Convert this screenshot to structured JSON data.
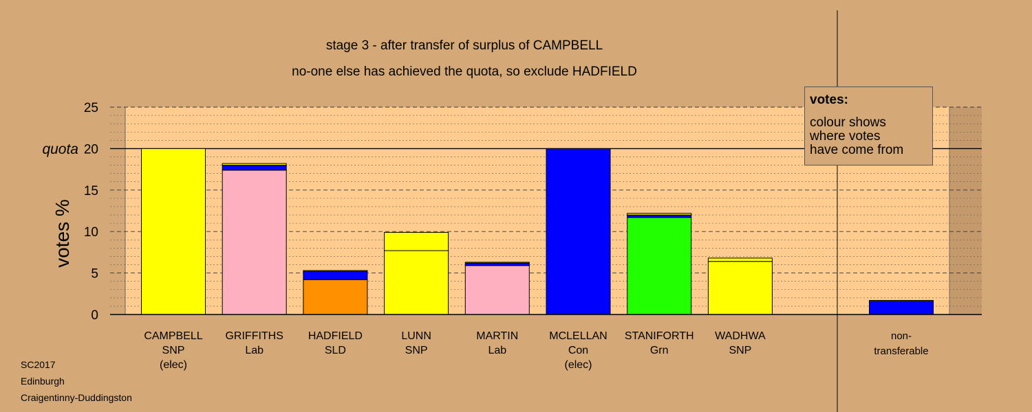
{
  "title_line1": "stage 3 - after transfer of surplus of CAMPBELL",
  "title_line2": "no-one else has achieved the quota, so exclude HADFIELD",
  "legend": {
    "title": "votes:",
    "lines": [
      "colour shows",
      "where votes",
      "have come from"
    ]
  },
  "footer": [
    "SC2017",
    "Edinburgh",
    "Craigentinny-Duddingston"
  ],
  "colors": {
    "background": "#D4A977",
    "plot_background": "#FFCC8F",
    "SNP": "#FFFF00",
    "Lab": "#FFB0C0",
    "SLD": "#FF9000",
    "Con": "#0000FF",
    "Grn": "#22FF00",
    "outline": "#000000"
  },
  "chart_data": {
    "type": "bar",
    "stacked": true,
    "ylabel": "votes %",
    "ylim": [
      0,
      25
    ],
    "yticks": [
      0,
      5,
      10,
      15,
      20,
      25
    ],
    "quota": 20,
    "quota_label": "quota",
    "grid": "dashed",
    "legend_position": "top-right",
    "candidates": [
      {
        "name": "CAMPBELL",
        "party": "SNP",
        "note": "(elec)",
        "segments": [
          {
            "source": "SNP",
            "value": 20.0
          }
        ]
      },
      {
        "name": "GRIFFITHS",
        "party": "Lab",
        "note": "",
        "segments": [
          {
            "source": "Lab",
            "value": 17.4
          },
          {
            "source": "Con",
            "value": 0.6
          },
          {
            "source": "SNP",
            "value": 0.2
          }
        ]
      },
      {
        "name": "HADFIELD",
        "party": "SLD",
        "note": "",
        "segments": [
          {
            "source": "SLD",
            "value": 4.2
          },
          {
            "source": "Con",
            "value": 1.0
          },
          {
            "source": "SNP",
            "value": 0.1
          }
        ]
      },
      {
        "name": "LUNN",
        "party": "SNP",
        "note": "",
        "segments": [
          {
            "source": "SNP",
            "value": 7.7
          },
          {
            "source": "SNP",
            "value": 2.2
          }
        ]
      },
      {
        "name": "MARTIN",
        "party": "Lab",
        "note": "",
        "segments": [
          {
            "source": "Lab",
            "value": 5.9
          },
          {
            "source": "Con",
            "value": 0.3
          },
          {
            "source": "SNP",
            "value": 0.1
          }
        ]
      },
      {
        "name": "MCLELLAN",
        "party": "Con",
        "note": "(elec)",
        "segments": [
          {
            "source": "Con",
            "value": 20.0
          }
        ]
      },
      {
        "name": "STANIFORTH",
        "party": "Grn",
        "note": "",
        "segments": [
          {
            "source": "Grn",
            "value": 11.7
          },
          {
            "source": "Con",
            "value": 0.3
          },
          {
            "source": "SNP",
            "value": 0.2
          }
        ]
      },
      {
        "name": "WADHWA",
        "party": "SNP",
        "note": "",
        "segments": [
          {
            "source": "SNP",
            "value": 6.4
          },
          {
            "source": "SNP",
            "value": 0.4
          }
        ]
      }
    ],
    "non_transferable": {
      "label_lines": [
        "non-",
        "transferable"
      ],
      "segments": [
        {
          "source": "Con",
          "value": 1.6
        },
        {
          "source": "SNP",
          "value": 0.1
        }
      ]
    }
  }
}
